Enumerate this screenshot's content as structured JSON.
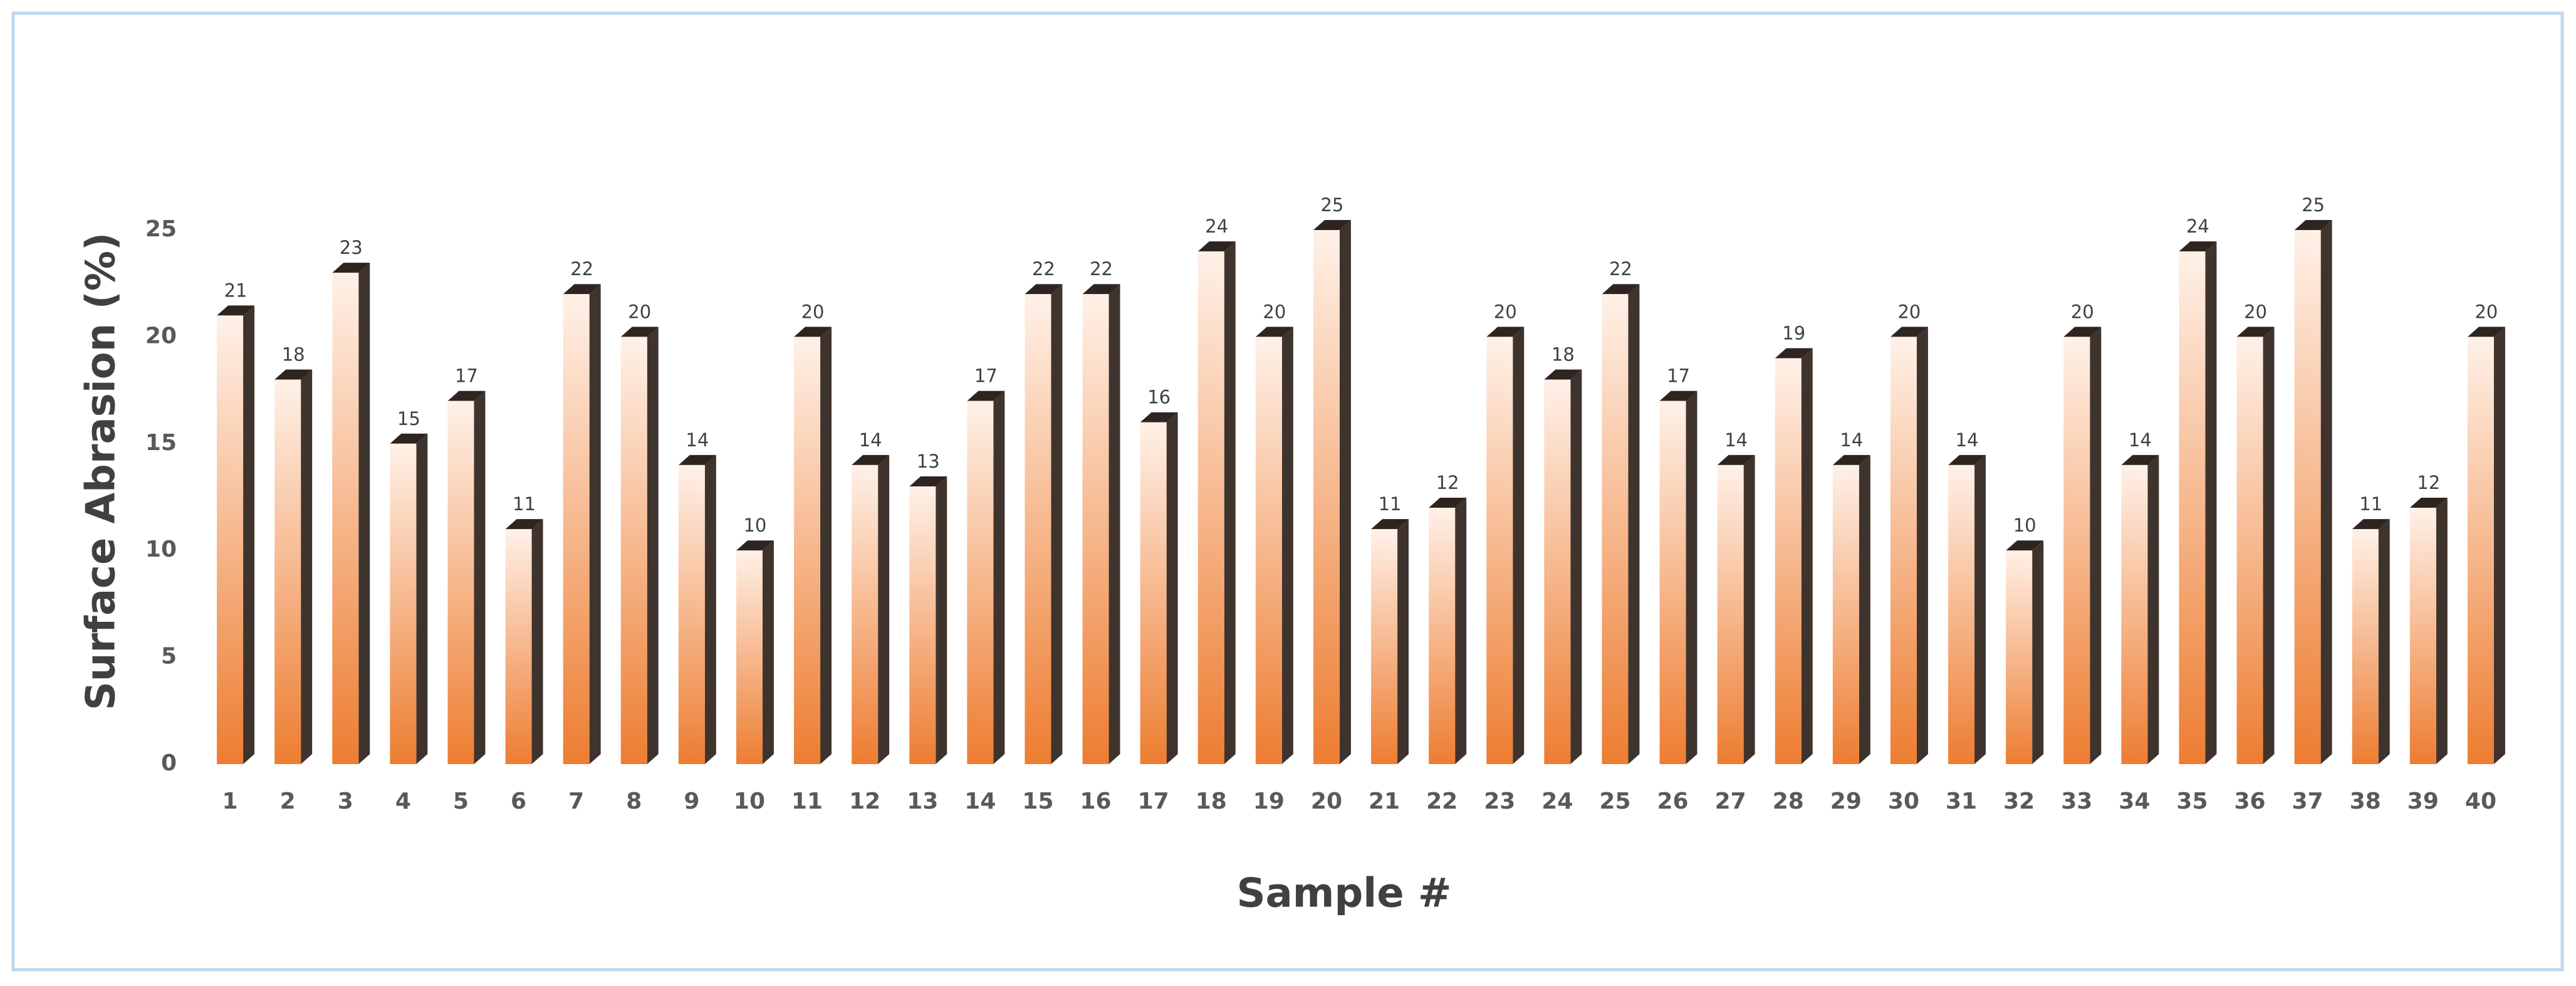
{
  "chart_data": {
    "type": "bar",
    "x_label": "Sample #",
    "y_label": "Surface Abrasion (%)",
    "categories": [
      "1",
      "2",
      "3",
      "4",
      "5",
      "6",
      "7",
      "8",
      "9",
      "10",
      "11",
      "12",
      "13",
      "14",
      "15",
      "16",
      "17",
      "18",
      "19",
      "20",
      "21",
      "22",
      "23",
      "24",
      "25",
      "26",
      "27",
      "28",
      "29",
      "30",
      "31",
      "32",
      "33",
      "34",
      "35",
      "36",
      "37",
      "38",
      "39",
      "40"
    ],
    "values": [
      21,
      18,
      23,
      15,
      17,
      11,
      22,
      20,
      14,
      10,
      20,
      14,
      13,
      17,
      22,
      22,
      16,
      24,
      20,
      25,
      11,
      12,
      20,
      18,
      22,
      17,
      14,
      19,
      14,
      20,
      14,
      10,
      20,
      14,
      24,
      20,
      25,
      11,
      12,
      20
    ],
    "color": "#ed7d31",
    "ylim": [
      0,
      25
    ],
    "yticks": [
      0,
      5,
      10,
      15,
      20,
      25
    ],
    "grid": false
  }
}
